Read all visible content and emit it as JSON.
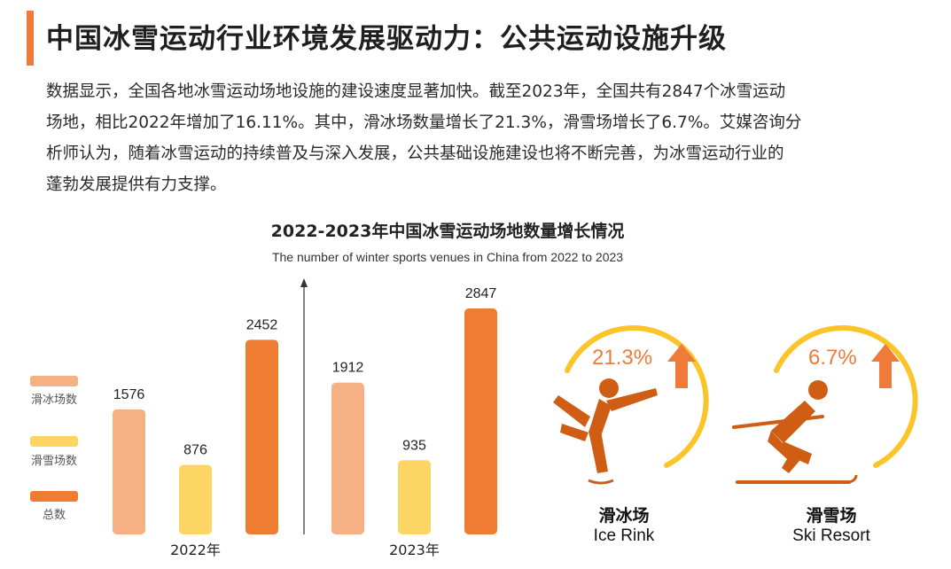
{
  "header": {
    "title": "中国冰雪运动行业环境发展驱动力：公共运动设施升级"
  },
  "paragraph": {
    "line1": "数据显示，全国各地冰雪运动场地设施的建设速度显著加快。截至2023年，全国共有2847个冰雪运动",
    "line2": "场地，相比2022年增加了16.11%。其中，滑冰场数量增长了21.3%，滑雪场增长了6.7%。艾媒咨询分",
    "line3": "析师认为，随着冰雪运动的持续普及与深入发展，公共基础设施建设也将不断完善，为冰雪运动行业的",
    "line4": "蓬勃发展提供有力支撑。"
  },
  "chart_data": {
    "type": "bar",
    "title": "2022-2023年中国冰雪运动场地数量增长情况",
    "subtitle": "The number of winter sports venues in China from 2022 to 2023",
    "categories": [
      "2022年",
      "2023年"
    ],
    "series": [
      {
        "name": "滑冰场数",
        "values": [
          1576,
          1912
        ],
        "color": "#f5b184"
      },
      {
        "name": "滑雪场数",
        "values": [
          876,
          935
        ],
        "color": "#fdd565"
      },
      {
        "name": "总数",
        "values": [
          2452,
          2847
        ],
        "color": "#ee7d31"
      }
    ],
    "legend_position": "left",
    "grid": false
  },
  "sports": [
    {
      "name_cn": "滑冰场",
      "name_en": "Ice Rink",
      "growth": "21.3%",
      "icon": "ice-skater-icon"
    },
    {
      "name_cn": "滑雪场",
      "name_en": "Ski Resort",
      "growth": "6.7%",
      "icon": "skier-icon"
    }
  ],
  "colors": {
    "accent": "#f07a3a",
    "ring": "#fbc52a",
    "figure": "#cf5e14"
  }
}
